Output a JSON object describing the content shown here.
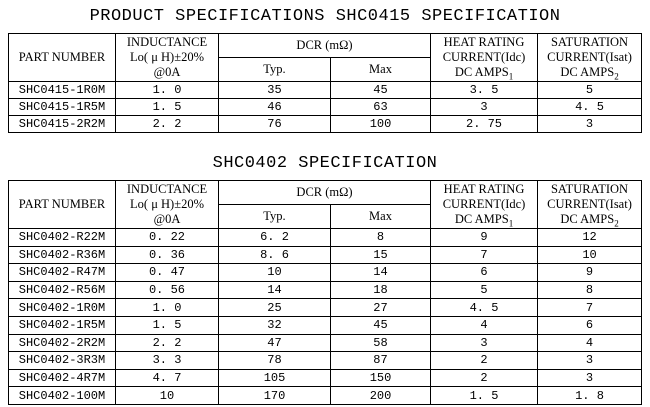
{
  "titles": {
    "main": "PRODUCT SPECIFICATIONS SHC0415 SPECIFICATION",
    "second": "SHC0402 SPECIFICATION"
  },
  "table_headers": {
    "part_number": "PART NUMBER",
    "inductance": [
      "INDUCTANCE",
      "Lo( μ H)±20%",
      "@0A"
    ],
    "dcr_group": "DCR (mΩ)",
    "dcr_typ": "Typ.",
    "dcr_max": "Max",
    "heat_rating": [
      "HEAT RATING",
      "CURRENT(Idc)",
      "DC AMPS"
    ],
    "heat_rating_sub": "1",
    "saturation": [
      "SATURATION",
      "CURRENT(Isat)",
      "DC AMPS"
    ],
    "saturation_sub": "2"
  },
  "shc0415_table": {
    "rows": [
      {
        "part": "SHC0415-1R0M",
        "inductance": "1. 0",
        "dcr_typ": "35",
        "dcr_max": "45",
        "heat": "3. 5",
        "sat": "5"
      },
      {
        "part": "SHC0415-1R5M",
        "inductance": "1. 5",
        "dcr_typ": "46",
        "dcr_max": "63",
        "heat": "3",
        "sat": "4. 5"
      },
      {
        "part": "SHC0415-2R2M",
        "inductance": "2. 2",
        "dcr_typ": "76",
        "dcr_max": "100",
        "heat": "2. 75",
        "sat": "3"
      }
    ]
  },
  "shc0402_table": {
    "rows": [
      {
        "part": "SHC0402-R22M",
        "inductance": "0. 22",
        "dcr_typ": "6. 2",
        "dcr_max": "8",
        "heat": "9",
        "sat": "12"
      },
      {
        "part": "SHC0402-R36M",
        "inductance": "0. 36",
        "dcr_typ": "8. 6",
        "dcr_max": "15",
        "heat": "7",
        "sat": "10"
      },
      {
        "part": "SHC0402-R47M",
        "inductance": "0. 47",
        "dcr_typ": "10",
        "dcr_max": "14",
        "heat": "6",
        "sat": "9"
      },
      {
        "part": "SHC0402-R56M",
        "inductance": "0. 56",
        "dcr_typ": "14",
        "dcr_max": "18",
        "heat": "5",
        "sat": "8"
      },
      {
        "part": "SHC0402-1R0M",
        "inductance": "1. 0",
        "dcr_typ": "25",
        "dcr_max": "27",
        "heat": "4. 5",
        "sat": "7"
      },
      {
        "part": "SHC0402-1R5M",
        "inductance": "1. 5",
        "dcr_typ": "32",
        "dcr_max": "45",
        "heat": "4",
        "sat": "6"
      },
      {
        "part": "SHC0402-2R2M",
        "inductance": "2. 2",
        "dcr_typ": "47",
        "dcr_max": "58",
        "heat": "3",
        "sat": "4"
      },
      {
        "part": "SHC0402-3R3M",
        "inductance": "3. 3",
        "dcr_typ": "78",
        "dcr_max": "87",
        "heat": "2",
        "sat": "3"
      },
      {
        "part": "SHC0402-4R7M",
        "inductance": "4. 7",
        "dcr_typ": "105",
        "dcr_max": "150",
        "heat": "2",
        "sat": "3"
      },
      {
        "part": "SHC0402-100M",
        "inductance": "10",
        "dcr_typ": "170",
        "dcr_max": "200",
        "heat": "1. 5",
        "sat": "1. 8"
      }
    ]
  }
}
